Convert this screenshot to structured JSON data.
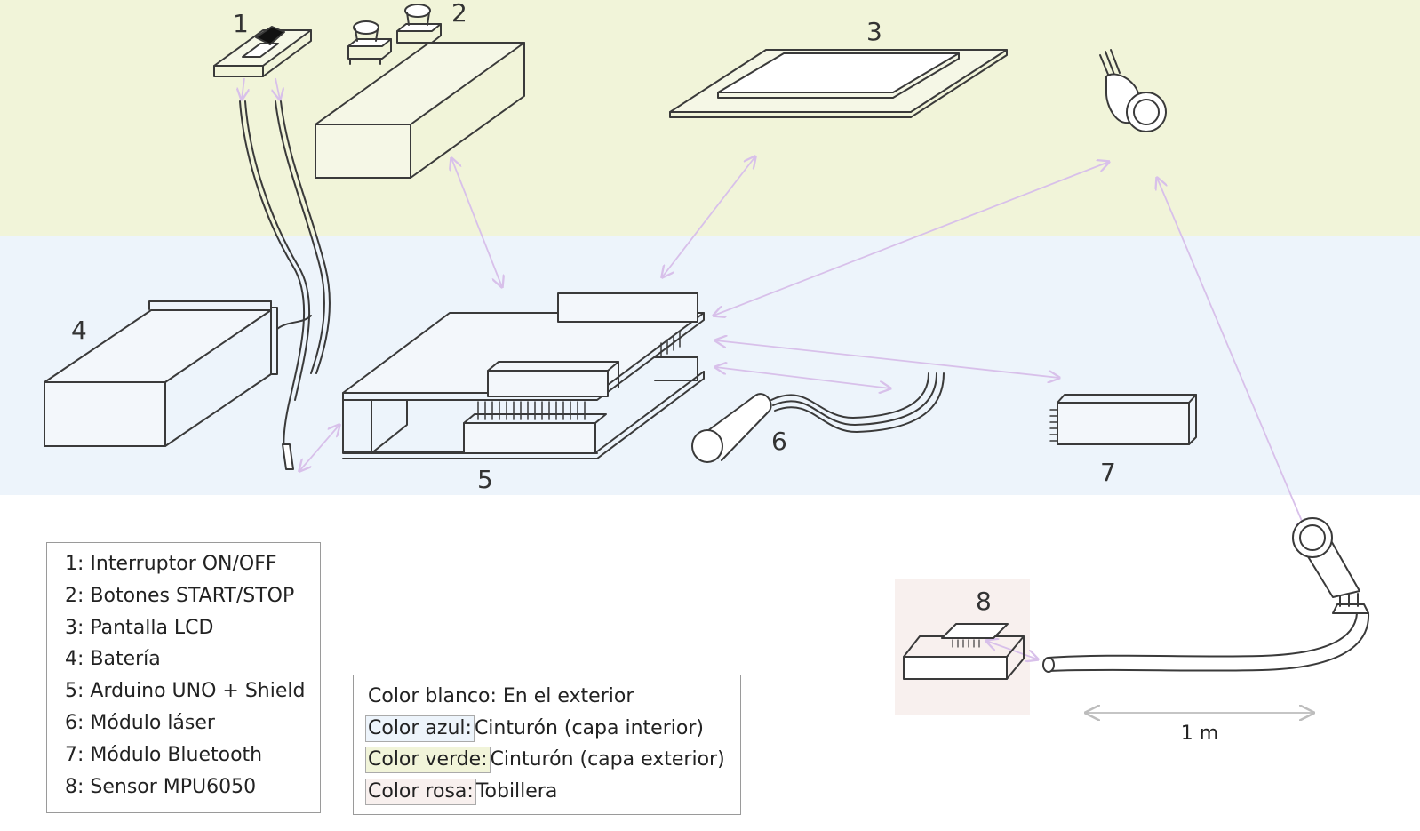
{
  "colors": {
    "green_band": "#f1f4d9",
    "blue_band": "#edf4fb",
    "pink_panel": "#f8f0ee",
    "line": "#3a3a3a",
    "arrow": "#d8c0ea"
  },
  "labels": {
    "n1": "1",
    "n2": "2",
    "n3": "3",
    "n4": "4",
    "n5": "5",
    "n6": "6",
    "n7": "7",
    "n8": "8",
    "distance": "1 m"
  },
  "components_legend": [
    "1: Interruptor ON/OFF",
    "2: Botones START/STOP",
    "3: Pantalla LCD",
    "4: Batería",
    "5: Arduino UNO + Shield",
    "6: Módulo láser",
    "7: Módulo Bluetooth",
    "8: Sensor MPU6050"
  ],
  "color_legend": {
    "white": "Color blanco: En el exterior",
    "blue_key": "Color azul:",
    "blue_value": "Cinturón (capa interior)",
    "green_key": "Color verde:",
    "green_value": "Cinturón (capa exterior)",
    "pink_key": "Color rosa:",
    "pink_value": "Tobillera"
  }
}
